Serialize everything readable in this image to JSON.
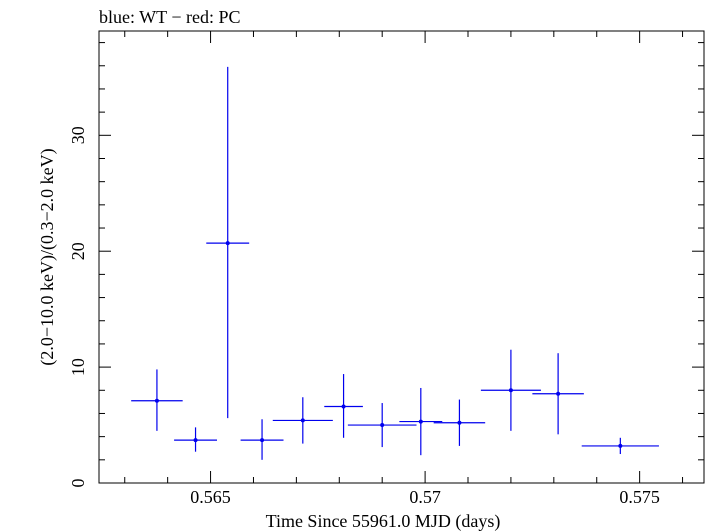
{
  "chart_data": {
    "type": "scatter",
    "title": "blue: WT − red: PC",
    "xlabel": "Time Since 55961.0 MJD (days)",
    "ylabel": "(2.0−10.0 keV)/(0.3−2.0 keV)",
    "xlim": [
      0.5624,
      0.5765
    ],
    "ylim": [
      0,
      39
    ],
    "x_ticks": [
      {
        "value": 0.565,
        "label": "0.565"
      },
      {
        "value": 0.57,
        "label": "0.57"
      },
      {
        "value": 0.575,
        "label": "0.575"
      }
    ],
    "y_ticks": [
      {
        "value": 0,
        "label": "0"
      },
      {
        "value": 10,
        "label": "10"
      },
      {
        "value": 20,
        "label": "20"
      },
      {
        "value": 30,
        "label": "30"
      }
    ],
    "x_minor_step": 0.001,
    "y_minor_step": 2,
    "series": [
      {
        "color": "#0000ee",
        "points": [
          {
            "x": 0.56375,
            "y": 7.1,
            "xerr": 0.0006,
            "yerr_low": 2.6,
            "yerr_high": 2.7
          },
          {
            "x": 0.56465,
            "y": 3.7,
            "xerr": 0.0005,
            "yerr_low": 1.0,
            "yerr_high": 1.1
          },
          {
            "x": 0.5654,
            "y": 20.7,
            "xerr": 0.0005,
            "yerr_low": 15.1,
            "yerr_high": 15.2
          },
          {
            "x": 0.5662,
            "y": 3.7,
            "xerr": 0.0005,
            "yerr_low": 1.7,
            "yerr_high": 1.8
          },
          {
            "x": 0.56715,
            "y": 5.4,
            "xerr": 0.0007,
            "yerr_low": 2.0,
            "yerr_high": 2.0
          },
          {
            "x": 0.5681,
            "y": 6.6,
            "xerr": 0.00045,
            "yerr_low": 2.7,
            "yerr_high": 2.8
          },
          {
            "x": 0.569,
            "y": 5.0,
            "xerr": 0.0008,
            "yerr_low": 1.9,
            "yerr_high": 1.9
          },
          {
            "x": 0.5699,
            "y": 5.3,
            "xerr": 0.0005,
            "yerr_low": 2.9,
            "yerr_high": 2.9
          },
          {
            "x": 0.5708,
            "y": 5.2,
            "xerr": 0.0006,
            "yerr_low": 2.0,
            "yerr_high": 2.0
          },
          {
            "x": 0.572,
            "y": 8.0,
            "xerr": 0.0007,
            "yerr_low": 3.5,
            "yerr_high": 3.5
          },
          {
            "x": 0.5731,
            "y": 7.7,
            "xerr": 0.0006,
            "yerr_low": 3.5,
            "yerr_high": 3.5
          },
          {
            "x": 0.57455,
            "y": 3.2,
            "xerr": 0.0009,
            "yerr_low": 0.7,
            "yerr_high": 0.7
          }
        ]
      }
    ]
  }
}
